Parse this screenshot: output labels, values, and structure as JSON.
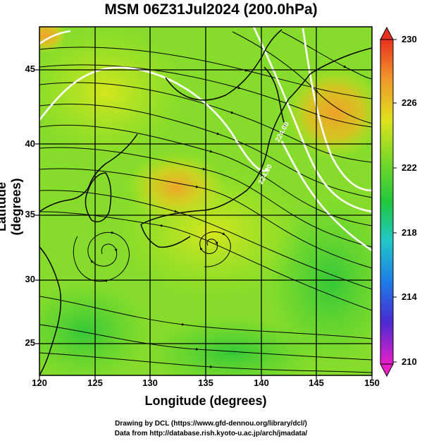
{
  "title": "MSM 06Z31Jul2024 (200.0hPa)",
  "xlabel": "Longitude (degrees)",
  "ylabel": "Latitude  (degrees)",
  "credit_line1": "Drawing by DCL (https://www.gfd-dennou.org/library/dcl/)",
  "credit_line2": "Data from http://database.rish.kyoto-u.ac.jp/arch/jmadata/",
  "x_ticks": [
    "120",
    "125",
    "130",
    "135",
    "140",
    "145",
    "150"
  ],
  "y_ticks": [
    "25",
    "30",
    "35",
    "40",
    "45"
  ],
  "colorbar_ticks": [
    "230",
    "226",
    "222",
    "218",
    "214",
    "210"
  ],
  "map": {
    "lon_range": [
      120,
      150
    ],
    "lat_range": [
      22.4,
      47.6
    ],
    "field": "temperature-colored streamlines",
    "colorbar_range": [
      210,
      230
    ],
    "contour_labels": [
      "224.00",
      "224.00"
    ]
  },
  "colors": {
    "green": "#33c833",
    "yellow_green": "#9be626",
    "yellow": "#d8e81e",
    "orange": "#f2a826",
    "contour": "#ffffff"
  }
}
